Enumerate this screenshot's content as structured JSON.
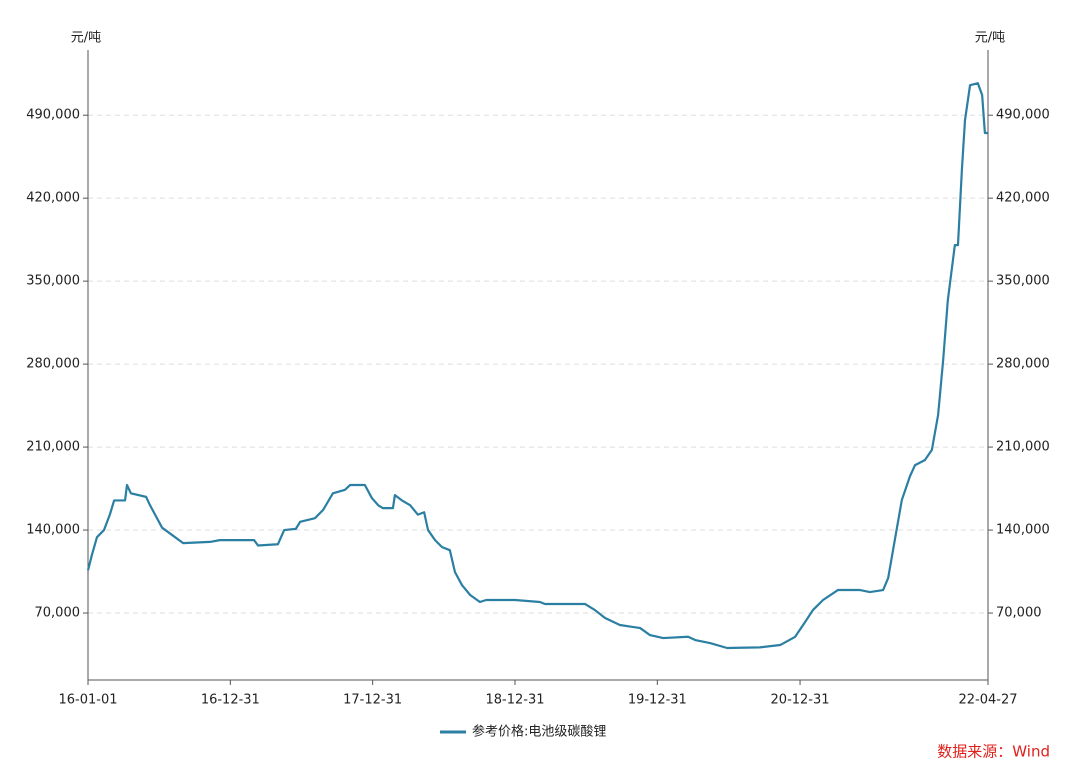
{
  "chart_data": {
    "type": "line",
    "y_label": "元/吨",
    "y2_label": "元/吨",
    "source": "数据来源：Wind",
    "x": [
      "16-01-01",
      "16-01-11",
      "16-01-24",
      "16-02-11",
      "16-02-26",
      "16-03-08",
      "16-04-05",
      "16-04-10",
      "16-04-20",
      "16-05-29",
      "16-06-08",
      "16-06-21",
      "16-07-09",
      "16-08-03",
      "16-09-01",
      "16-11-09",
      "16-12-04",
      "17-03-02",
      "17-03-12",
      "17-05-02",
      "17-05-18",
      "17-06-17",
      "17-06-28",
      "17-08-05",
      "17-08-26",
      "17-09-20",
      "17-10-21",
      "17-11-03",
      "17-12-11",
      "17-12-29",
      "18-01-14",
      "18-01-26",
      "18-02-21",
      "18-02-26",
      "18-03-16",
      "18-04-06",
      "18-04-26",
      "18-05-12",
      "18-05-22",
      "18-06-09",
      "18-06-27",
      "18-07-17",
      "18-07-30",
      "18-08-17",
      "18-09-07",
      "18-10-02",
      "18-10-18",
      "18-12-31",
      "19-03-05",
      "19-03-18",
      "19-06-29",
      "19-07-24",
      "19-08-19",
      "19-09-26",
      "19-11-17",
      "19-12-12",
      "20-01-15",
      "20-03-19",
      "20-04-06",
      "20-05-14",
      "20-06-27",
      "20-09-19",
      "20-11-10",
      "20-12-18",
      "21-01-13",
      "21-02-02",
      "21-02-28",
      "21-04-07",
      "21-06-03",
      "21-06-28",
      "21-08-01",
      "21-08-14",
      "21-08-31",
      "21-09-18",
      "21-10-09",
      "21-10-22",
      "21-11-16",
      "21-12-04",
      "21-12-20",
      "22-01-02",
      "22-01-14",
      "22-02-01",
      "22-02-09",
      "22-02-19",
      "22-02-27",
      "22-03-12",
      "22-04-01",
      "22-04-12",
      "22-04-19",
      "22-04-27"
    ],
    "series": [
      {
        "name": "参考价格:电池级碳酸锂",
        "color": "#2b7fa3",
        "values": [
          106000,
          119000,
          134000,
          140000,
          153000,
          165000,
          165000,
          178000,
          171000,
          168000,
          161000,
          153000,
          142000,
          136000,
          129000,
          130000,
          131500,
          131500,
          127000,
          128000,
          140000,
          141000,
          147000,
          150000,
          157000,
          171000,
          174000,
          178000,
          178000,
          167000,
          161000,
          158500,
          158500,
          169500,
          165000,
          161000,
          153000,
          155000,
          140000,
          131500,
          125600,
          123000,
          104600,
          93600,
          85200,
          79300,
          81000,
          81000,
          79300,
          77600,
          77600,
          72500,
          65800,
          59900,
          57300,
          51400,
          48900,
          50000,
          47200,
          44700,
          40500,
          41000,
          43000,
          49800,
          62400,
          72500,
          81000,
          89400,
          89400,
          87700,
          89400,
          99500,
          131600,
          165300,
          185500,
          194800,
          199000,
          207500,
          237000,
          283400,
          334000,
          380400,
          380400,
          443600,
          485800,
          515300,
          517000,
          507000,
          475000,
          475000
        ]
      }
    ],
    "xlim": [
      "16-01-01",
      "22-04-27"
    ],
    "xticks": [
      "16-01-01",
      "16-12-31",
      "17-12-31",
      "18-12-31",
      "19-12-31",
      "20-12-31",
      "22-04-27"
    ],
    "ylim": [
      13500,
      545000
    ],
    "yticks": [
      {
        "value": 70000,
        "label": "70,000"
      },
      {
        "value": 140000,
        "label": "140,000"
      },
      {
        "value": 210000,
        "label": "210,000"
      },
      {
        "value": 280000,
        "label": "280,000"
      },
      {
        "value": 350000,
        "label": "350,000"
      },
      {
        "value": 420000,
        "label": "420,000"
      },
      {
        "value": 490000,
        "label": "490,000"
      }
    ],
    "y2lim": [
      13500,
      545000
    ],
    "y2ticks": [
      {
        "value": 70000,
        "label": "70,000"
      },
      {
        "value": 140000,
        "label": "140,000"
      },
      {
        "value": 210000,
        "label": "210,000"
      },
      {
        "value": 280000,
        "label": "280,000"
      },
      {
        "value": 350000,
        "label": "350,000"
      },
      {
        "value": 420000,
        "label": "420,000"
      },
      {
        "value": 490000,
        "label": "490,000"
      }
    ],
    "grid": true,
    "legend": "bottom"
  }
}
